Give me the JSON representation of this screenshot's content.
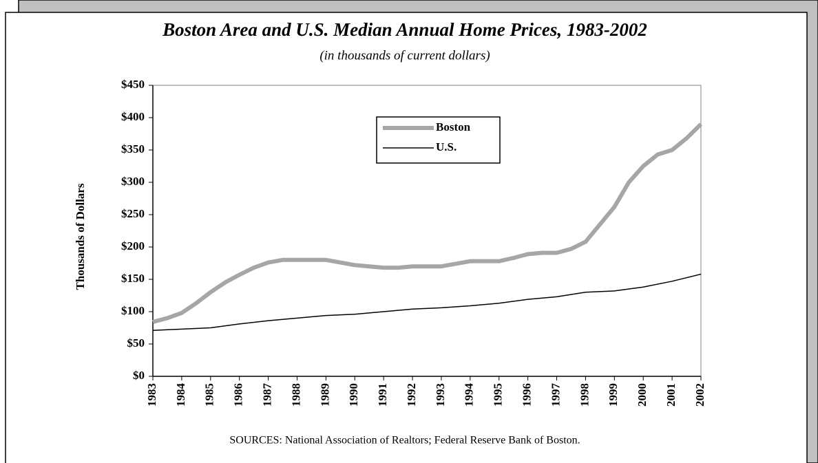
{
  "chart_data": {
    "type": "line",
    "title": "Boston Area and U.S. Median Annual Home Prices, 1983-2002",
    "subtitle": "(in thousands of current dollars)",
    "y_label": "Thousands of Dollars",
    "source": "SOURCES: National Association of Realtors; Federal Reserve Bank of Boston.",
    "xlim": [
      1983,
      2002
    ],
    "xticks": [
      1983,
      1984,
      1985,
      1986,
      1987,
      1988,
      1989,
      1990,
      1991,
      1992,
      1993,
      1994,
      1995,
      1996,
      1997,
      1998,
      1999,
      2000,
      2001,
      2002
    ],
    "ylim": [
      0,
      450
    ],
    "yticks": [
      {
        "value": 0,
        "label": "$0"
      },
      {
        "value": 50,
        "label": "$50"
      },
      {
        "value": 100,
        "label": "$100"
      },
      {
        "value": 150,
        "label": "$150"
      },
      {
        "value": 200,
        "label": "$200"
      },
      {
        "value": 250,
        "label": "$250"
      },
      {
        "value": 300,
        "label": "$300"
      },
      {
        "value": 350,
        "label": "$350"
      },
      {
        "value": 400,
        "label": "$400"
      },
      {
        "value": 450,
        "label": "$450"
      }
    ],
    "series": [
      {
        "name": "Boston",
        "color": "#a6a6a6",
        "width": 6,
        "x": [
          1983,
          1983.5,
          1984,
          1984.5,
          1985,
          1985.5,
          1986,
          1986.5,
          1987,
          1987.5,
          1988,
          1988.5,
          1989,
          1989.5,
          1990,
          1990.5,
          1991,
          1991.5,
          1992,
          1992.5,
          1993,
          1993.5,
          1994,
          1994.5,
          1995,
          1995.5,
          1996,
          1996.5,
          1997,
          1997.5,
          1998,
          1998.5,
          1999,
          1999.5,
          2000,
          2000.5,
          2001,
          2001.5,
          2002
        ],
        "values": [
          84,
          90,
          98,
          113,
          130,
          145,
          157,
          168,
          176,
          180,
          180,
          180,
          180,
          176,
          172,
          170,
          168,
          168,
          170,
          170,
          170,
          174,
          178,
          178,
          178,
          183,
          189,
          191,
          191,
          197,
          208,
          235,
          262,
          300,
          325,
          343,
          350,
          368,
          390
        ]
      },
      {
        "name": "U.S.",
        "color": "#000000",
        "width": 1.5,
        "x": [
          1983,
          1984,
          1985,
          1986,
          1987,
          1988,
          1989,
          1990,
          1991,
          1992,
          1993,
          1994,
          1995,
          1996,
          1997,
          1998,
          1999,
          2000,
          2001,
          2002
        ],
        "values": [
          71,
          73,
          75,
          81,
          86,
          90,
          94,
          96,
          100,
          104,
          106,
          109,
          113,
          119,
          123,
          130,
          132,
          138,
          147,
          158
        ]
      }
    ]
  }
}
